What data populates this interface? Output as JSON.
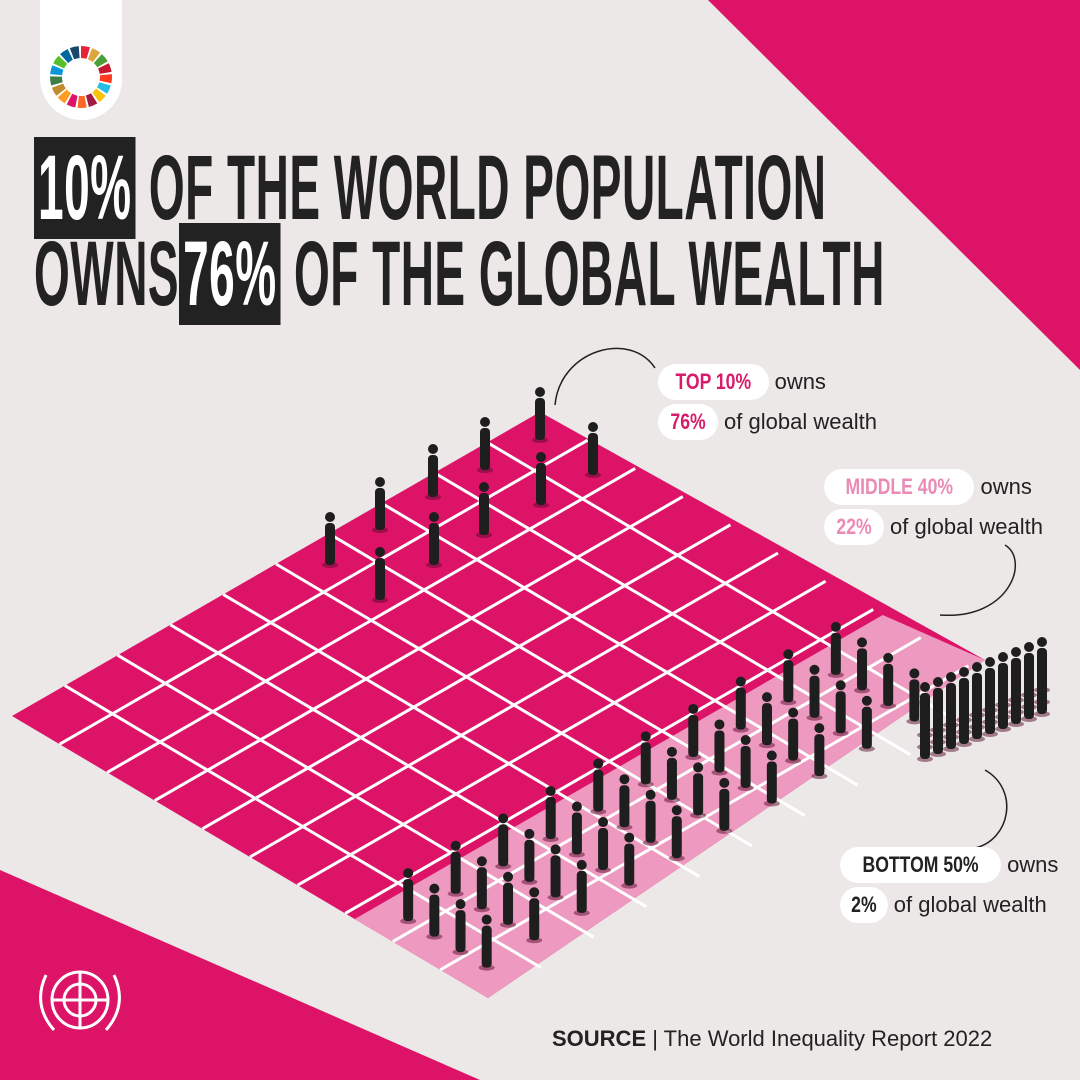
{
  "title": {
    "line1": {
      "highlight": "10%",
      "rest": "OF THE WORLD POPULATION"
    },
    "line2": {
      "lead": "OWNS",
      "highlight": "76%",
      "rest": "OF THE GLOBAL WEALTH"
    }
  },
  "groups": [
    {
      "label": "TOP 10%",
      "verb": "owns",
      "share": "76%",
      "suffix": "of global wealth"
    },
    {
      "label": "MIDDLE 40%",
      "verb": "owns",
      "share": "22%",
      "suffix": "of global wealth"
    },
    {
      "label": "BOTTOM 50%",
      "verb": "owns",
      "share": "2%",
      "suffix": "of global wealth"
    }
  ],
  "source": {
    "label": "SOURCE",
    "text": "| The World Inequality Report 2022"
  }
}
